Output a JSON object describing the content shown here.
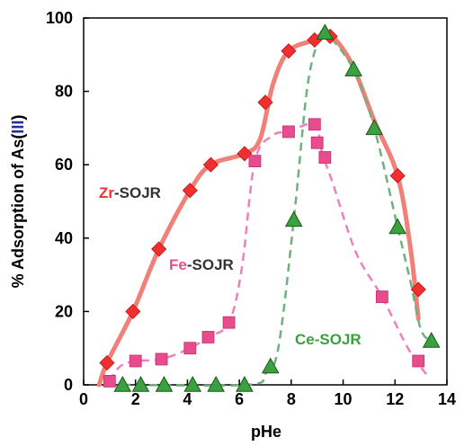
{
  "chart_data": {
    "type": "scatter",
    "xlabel": "pHe",
    "ylabel": "% Adsorption of As(III)",
    "xlim": [
      0,
      14
    ],
    "ylim": [
      0,
      100
    ],
    "xticks": [
      "0",
      "2",
      "4",
      "6",
      "8",
      "10",
      "12",
      "14"
    ],
    "yticks": [
      "0",
      "20",
      "40",
      "60",
      "80",
      "100"
    ],
    "colors": {
      "zr": "#f03030",
      "zr_line": "#f08078",
      "fe": "#e84c8c",
      "fe_line": "#ee80c0",
      "ce": "#3aa040",
      "ce_line": "#70b080",
      "label_dark": "#333333",
      "roman_blue": "#2030a0"
    },
    "series": [
      {
        "name_prefix": "Zr",
        "name_suffix": "-SOJR",
        "marker": "diamond",
        "x": [
          0.9,
          1.9,
          2.9,
          4.1,
          4.9,
          6.2,
          7.0,
          7.9,
          8.9,
          9.5,
          12.1,
          12.9
        ],
        "y": [
          6,
          20,
          37,
          53,
          60,
          63,
          77,
          91,
          94,
          95,
          57,
          26
        ]
      },
      {
        "name_prefix": "Fe",
        "name_suffix": "-SOJR",
        "marker": "square",
        "x": [
          1.0,
          2.0,
          3.0,
          4.1,
          4.8,
          5.6,
          6.6,
          7.9,
          8.9,
          9.0,
          9.3,
          11.5,
          12.9
        ],
        "y": [
          1,
          6.5,
          7,
          10,
          13,
          17,
          61,
          69,
          71,
          66,
          62,
          24,
          6.5
        ]
      },
      {
        "name_prefix": "Ce",
        "name_suffix": "-SOJR",
        "marker": "triangle",
        "x": [
          1.5,
          2.2,
          3.1,
          4.2,
          5.1,
          6.2,
          7.2,
          8.1,
          9.3,
          10.4,
          11.2,
          12.1,
          13.4
        ],
        "y": [
          0,
          0,
          0,
          0,
          0,
          0,
          5,
          45,
          96,
          86,
          70,
          43,
          12
        ]
      }
    ],
    "curves": {
      "zr": [
        [
          0.6,
          0
        ],
        [
          0.9,
          6
        ],
        [
          1.9,
          20
        ],
        [
          2.9,
          37
        ],
        [
          4.1,
          53
        ],
        [
          4.9,
          60
        ],
        [
          6.2,
          63
        ],
        [
          6.8,
          67
        ],
        [
          7.3,
          82
        ],
        [
          7.9,
          91
        ],
        [
          8.9,
          94
        ],
        [
          9.4,
          96
        ],
        [
          10.3,
          88
        ],
        [
          11.2,
          72
        ],
        [
          12.1,
          57
        ],
        [
          12.6,
          37
        ],
        [
          12.9,
          18
        ]
      ],
      "fe": [
        [
          1.0,
          1
        ],
        [
          1.4,
          5
        ],
        [
          2.0,
          6.5
        ],
        [
          3.0,
          7
        ],
        [
          4.1,
          10
        ],
        [
          4.8,
          13
        ],
        [
          5.6,
          17
        ],
        [
          6.1,
          32
        ],
        [
          6.6,
          61
        ],
        [
          7.3,
          68
        ],
        [
          7.9,
          69
        ],
        [
          8.9,
          71
        ],
        [
          9.2,
          63
        ],
        [
          9.6,
          55
        ],
        [
          10.5,
          36
        ],
        [
          11.5,
          24
        ],
        [
          12.5,
          10
        ],
        [
          13.3,
          2
        ]
      ],
      "ce": [
        [
          1.5,
          0
        ],
        [
          6.3,
          0
        ],
        [
          7.0,
          3
        ],
        [
          7.5,
          10
        ],
        [
          8.1,
          45
        ],
        [
          8.6,
          80
        ],
        [
          9.0,
          93
        ],
        [
          9.3,
          96
        ],
        [
          10.4,
          86
        ],
        [
          11.2,
          70
        ],
        [
          12.1,
          43
        ],
        [
          12.6,
          28
        ],
        [
          13.0,
          15
        ],
        [
          13.4,
          12
        ]
      ]
    }
  }
}
